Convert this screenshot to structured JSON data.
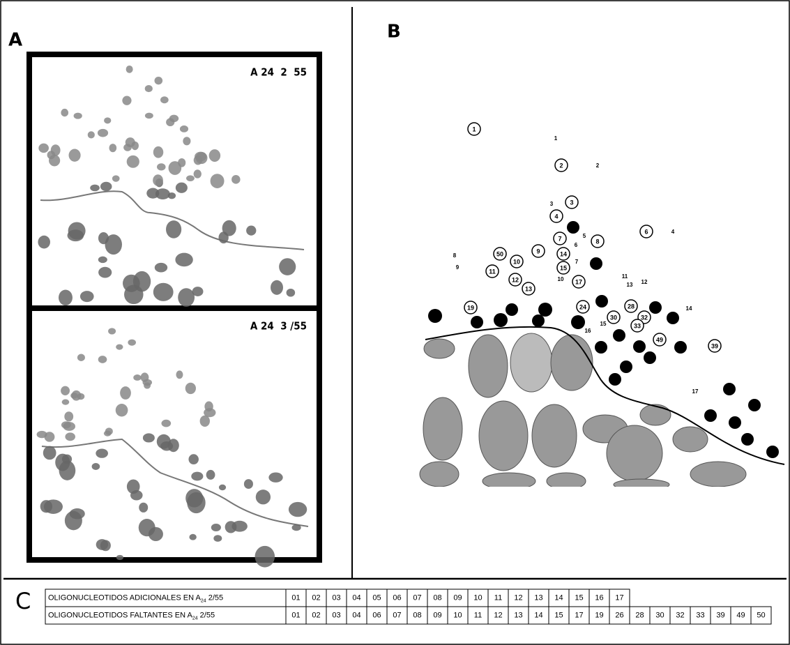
{
  "panel_a": {
    "label": "A",
    "top_gel": "A 24  2  55",
    "bottom_gel": "A 24  3 /55"
  },
  "panel_b": {
    "label": "B",
    "open_circles": [
      "1",
      "2",
      "3",
      "4",
      "7",
      "8",
      "6",
      "9",
      "14",
      "15",
      "17",
      "50",
      "10",
      "11",
      "12",
      "13",
      "19",
      "24",
      "28",
      "30",
      "32",
      "33",
      "49",
      "39"
    ],
    "free_labels": [
      "1",
      "2",
      "3",
      "5",
      "6",
      "7",
      "10",
      "4",
      "8",
      "9",
      "11",
      "13",
      "12",
      "15",
      "16",
      "14",
      "17"
    ]
  },
  "panel_c": {
    "label": "C",
    "rows": [
      {
        "prefix": "OLIGONUCLEOTIDOS  ADICIONALES EN A",
        "sub": "24",
        "suffix": " 2/55",
        "cells": [
          "01",
          "02",
          "03",
          "04",
          "05",
          "06",
          "07",
          "08",
          "09",
          "10",
          "11",
          "12",
          "13",
          "14",
          "15",
          "16",
          "17"
        ]
      },
      {
        "prefix": "OLIGONUCLEOTIDOS  FALTANTES EN A",
        "sub": "24",
        "suffix": " 2/55",
        "cells": [
          "01",
          "02",
          "03",
          "04",
          "06",
          "07",
          "08",
          "09",
          "10",
          "11",
          "12",
          "13",
          "14",
          "15",
          "17",
          "19",
          "26",
          "28",
          "30",
          "32",
          "33",
          "39",
          "49",
          "50"
        ]
      }
    ]
  }
}
